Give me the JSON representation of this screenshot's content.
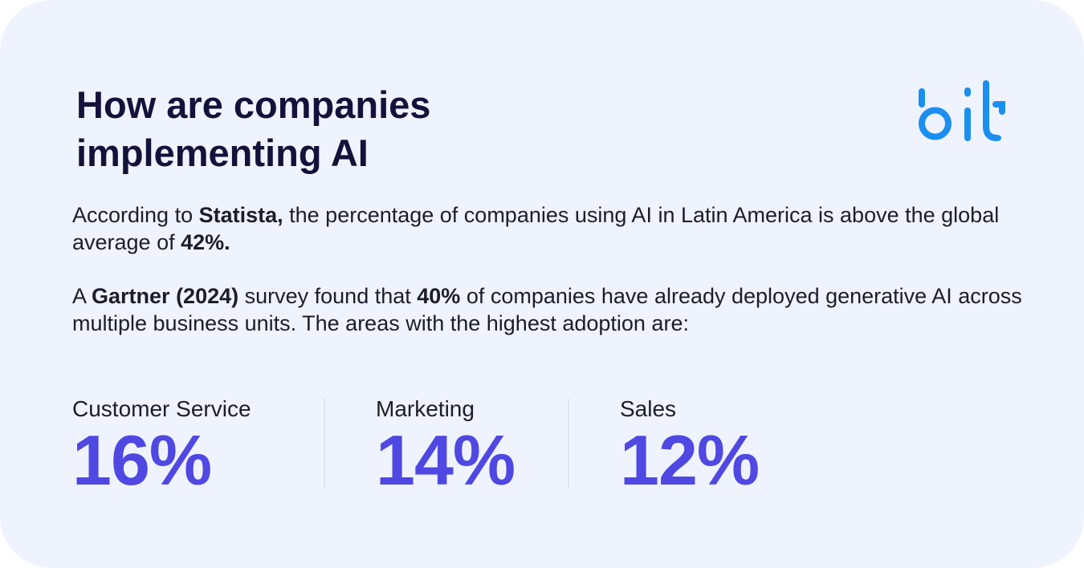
{
  "header": {
    "title_line1": "How are companies",
    "title_line2": "implementing AI",
    "logo_alt": "bit"
  },
  "colors": {
    "background": "#eff3fd",
    "accent": "#4f48e2",
    "logo_blue": "#1b8ff0",
    "text": "#1c1c2a"
  },
  "intro": {
    "p1_a": "According to ",
    "p1_b": "Statista,",
    "p1_c": " the percentage of companies using AI in Latin America is above the global average of ",
    "p1_d": "42%.",
    "p2_a": "A ",
    "p2_b": "Gartner (2024)",
    "p2_c": " survey found that ",
    "p2_d": "40%",
    "p2_e": " of companies have already deployed generative AI across multiple business units. The areas with the highest adoption are:"
  },
  "stats": [
    {
      "label": "Customer Service",
      "value": "16%"
    },
    {
      "label": "Marketing",
      "value": "14%"
    },
    {
      "label": "Sales",
      "value": "12%"
    }
  ]
}
